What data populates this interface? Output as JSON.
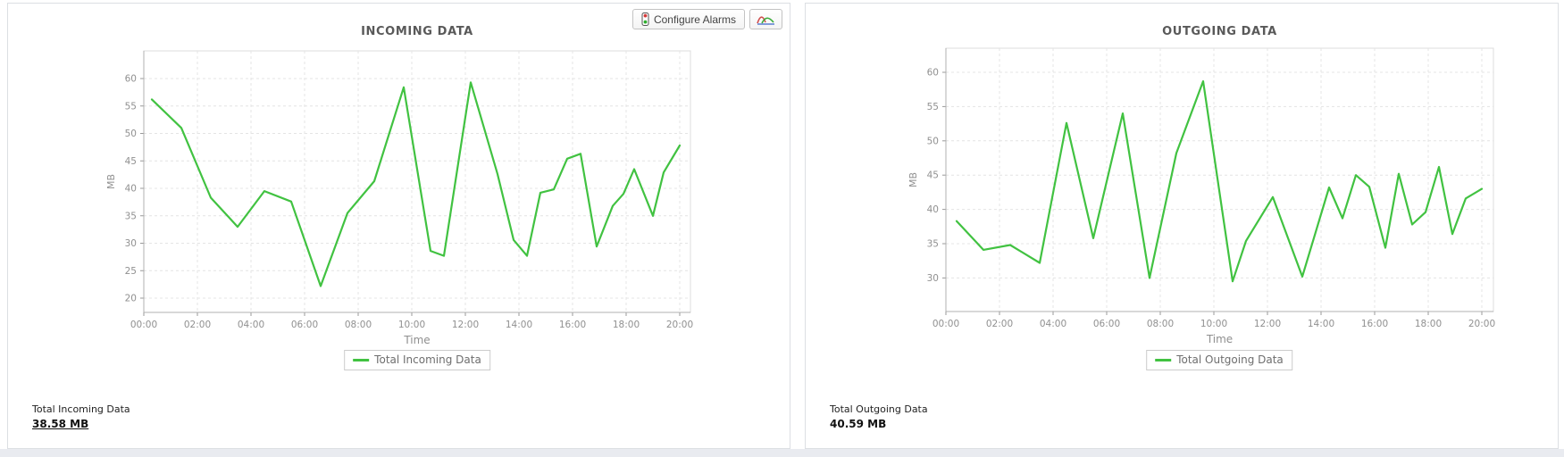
{
  "toolbar": {
    "configure_alarms_label": "Configure Alarms",
    "chart_type_icon": "line-chart-icon",
    "alarm_icon": "traffic-light-icon"
  },
  "panels": [
    {
      "summary_label": "Total Incoming Data",
      "summary_value": "38.58 MB"
    },
    {
      "summary_label": "Total Outgoing Data",
      "summary_value": "40.59 MB"
    }
  ],
  "colors": {
    "line_green": "#41c241",
    "grid": "#e4e4e4",
    "axis": "#b0b0b0",
    "tick_text": "#909090"
  },
  "chart_data": [
    {
      "type": "line",
      "title": "INCOMING DATA",
      "xlabel": "Time",
      "ylabel": "MB",
      "legend": "Total Incoming Data",
      "legend_position": "bottom",
      "grid": true,
      "line_color": "#41c241",
      "x_ticks": [
        "00:00",
        "02:00",
        "04:00",
        "06:00",
        "08:00",
        "10:00",
        "12:00",
        "14:00",
        "16:00",
        "18:00",
        "20:00"
      ],
      "x_tick_hours": [
        0,
        2,
        4,
        6,
        8,
        10,
        12,
        14,
        16,
        18,
        20
      ],
      "y_ticks": [
        20,
        25,
        30,
        35,
        40,
        45,
        50,
        55,
        60
      ],
      "ylim": [
        20,
        60
      ],
      "xlim_hours": [
        0,
        20.4
      ],
      "series": [
        {
          "name": "Total Incoming Data",
          "points": [
            [
              0.3,
              56.2
            ],
            [
              1.4,
              51.0
            ],
            [
              2.5,
              38.3
            ],
            [
              3.5,
              33.0
            ],
            [
              4.5,
              39.5
            ],
            [
              5.5,
              37.6
            ],
            [
              6.6,
              22.2
            ],
            [
              7.6,
              35.5
            ],
            [
              8.6,
              41.3
            ],
            [
              9.7,
              58.4
            ],
            [
              10.7,
              28.6
            ],
            [
              11.2,
              27.7
            ],
            [
              12.2,
              59.3
            ],
            [
              13.2,
              42.6
            ],
            [
              13.8,
              30.6
            ],
            [
              14.3,
              27.7
            ],
            [
              14.8,
              39.2
            ],
            [
              15.3,
              39.8
            ],
            [
              15.8,
              45.4
            ],
            [
              16.3,
              46.3
            ],
            [
              16.9,
              29.4
            ],
            [
              17.5,
              36.8
            ],
            [
              17.9,
              39.0
            ],
            [
              18.3,
              43.5
            ],
            [
              19.0,
              35.0
            ],
            [
              19.4,
              42.9
            ],
            [
              20.0,
              47.8
            ]
          ]
        }
      ]
    },
    {
      "type": "line",
      "title": "OUTGOING DATA",
      "xlabel": "Time",
      "ylabel": "MB",
      "legend": "Total Outgoing Data",
      "legend_position": "bottom",
      "grid": true,
      "line_color": "#41c241",
      "x_ticks": [
        "00:00",
        "02:00",
        "04:00",
        "06:00",
        "08:00",
        "10:00",
        "12:00",
        "14:00",
        "16:00",
        "18:00",
        "20:00"
      ],
      "x_tick_hours": [
        0,
        2,
        4,
        6,
        8,
        10,
        12,
        14,
        16,
        18,
        20
      ],
      "y_ticks": [
        30,
        35,
        40,
        45,
        50,
        55,
        60
      ],
      "ylim": [
        30,
        60
      ],
      "xlim_hours": [
        0,
        20.4
      ],
      "series": [
        {
          "name": "Total Outgoing Data",
          "points": [
            [
              0.4,
              38.3
            ],
            [
              1.4,
              34.1
            ],
            [
              2.4,
              34.8
            ],
            [
              3.5,
              32.2
            ],
            [
              4.5,
              52.6
            ],
            [
              5.5,
              35.8
            ],
            [
              6.6,
              54.0
            ],
            [
              7.6,
              30.0
            ],
            [
              8.6,
              48.2
            ],
            [
              9.6,
              58.7
            ],
            [
              10.7,
              29.5
            ],
            [
              11.2,
              35.4
            ],
            [
              12.2,
              41.8
            ],
            [
              13.3,
              30.2
            ],
            [
              14.3,
              43.2
            ],
            [
              14.8,
              38.7
            ],
            [
              15.3,
              45.0
            ],
            [
              15.8,
              43.3
            ],
            [
              16.4,
              34.4
            ],
            [
              16.9,
              45.2
            ],
            [
              17.4,
              37.8
            ],
            [
              17.9,
              39.6
            ],
            [
              18.4,
              46.2
            ],
            [
              18.9,
              36.4
            ],
            [
              19.4,
              41.6
            ],
            [
              20.0,
              43.0
            ]
          ]
        }
      ]
    }
  ]
}
